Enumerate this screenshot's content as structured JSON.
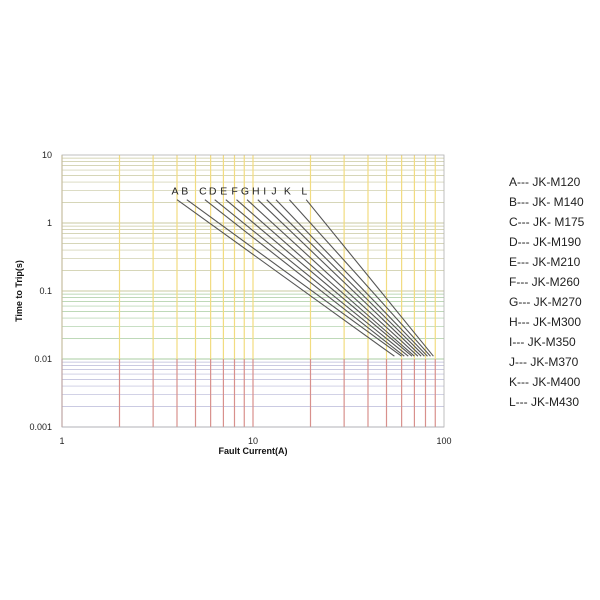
{
  "chart_data": {
    "type": "line",
    "title": "",
    "xlabel": "Fault Current(A)",
    "ylabel": "Time to Trip(s)",
    "xscale": "log",
    "yscale": "log",
    "xlim": [
      1,
      100
    ],
    "ylim": [
      0.001,
      10
    ],
    "x_ticks": [
      "1",
      "10",
      "100"
    ],
    "y_ticks": [
      "0.001",
      "0.01",
      "0.1",
      "1",
      "10"
    ],
    "grid": true,
    "colors": {
      "vertical_grid_upper": "#f2dc80",
      "vertical_grid_lower": "#d8908c",
      "horizontal_grid_upper": "#c8c8a0",
      "horizontal_grid_lower": "#a8cca0",
      "horizontal_grid_bottom": "#b8b8d8",
      "curve": "#555555"
    },
    "series": [
      {
        "name": "A",
        "points": [
          [
            4.0,
            2.2
          ],
          [
            55,
            0.011
          ]
        ]
      },
      {
        "name": "B",
        "points": [
          [
            4.5,
            2.2
          ],
          [
            60,
            0.011
          ]
        ]
      },
      {
        "name": "C",
        "points": [
          [
            5.6,
            2.2
          ],
          [
            62,
            0.011
          ]
        ]
      },
      {
        "name": "D",
        "points": [
          [
            6.3,
            2.2
          ],
          [
            65,
            0.011
          ]
        ]
      },
      {
        "name": "E",
        "points": [
          [
            7.2,
            2.2
          ],
          [
            68,
            0.011
          ]
        ]
      },
      {
        "name": "F",
        "points": [
          [
            8.2,
            2.2
          ],
          [
            70,
            0.011
          ]
        ]
      },
      {
        "name": "G",
        "points": [
          [
            9.3,
            2.2
          ],
          [
            73,
            0.011
          ]
        ]
      },
      {
        "name": "H",
        "points": [
          [
            10.6,
            2.2
          ],
          [
            76,
            0.011
          ]
        ]
      },
      {
        "name": "I",
        "points": [
          [
            11.8,
            2.2
          ],
          [
            79,
            0.011
          ]
        ]
      },
      {
        "name": "J",
        "points": [
          [
            13.2,
            2.2
          ],
          [
            82,
            0.011
          ]
        ]
      },
      {
        "name": "K",
        "points": [
          [
            15.5,
            2.2
          ],
          [
            85,
            0.011
          ]
        ]
      },
      {
        "name": "L",
        "points": [
          [
            19.0,
            2.2
          ],
          [
            88,
            0.011
          ]
        ]
      }
    ],
    "legend": [
      {
        "key": "A",
        "text": "A--- JK-M120"
      },
      {
        "key": "B",
        "text": "B--- JK- M140"
      },
      {
        "key": "C",
        "text": "C--- JK- M175"
      },
      {
        "key": "D",
        "text": "D--- JK-M190"
      },
      {
        "key": "E",
        "text": "E--- JK-M210"
      },
      {
        "key": "F",
        "text": "F--- JK-M260"
      },
      {
        "key": "G",
        "text": "G--- JK-M270"
      },
      {
        "key": "H",
        "text": "H--- JK-M300"
      },
      {
        "key": "I",
        "text": "I--- JK-M350"
      },
      {
        "key": "J",
        "text": "J--- JK-M370"
      },
      {
        "key": "K",
        "text": "K--- JK-M400"
      },
      {
        "key": "L",
        "text": "L--- JK-M430"
      }
    ],
    "legend_position": "right"
  }
}
